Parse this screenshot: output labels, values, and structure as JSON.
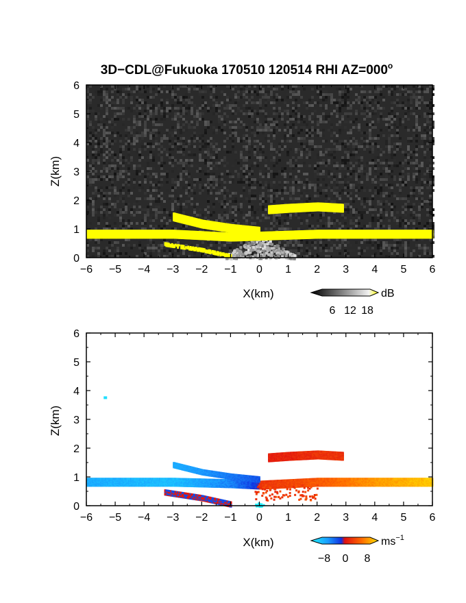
{
  "title": "3D−CDL@Fukuoka 170510 120514 RHI AZ=000",
  "title_sup": "o",
  "chart_data": [
    {
      "type": "heatmap",
      "panel": "reflectivity",
      "xlabel": "X(km)",
      "ylabel": "Z(km)",
      "xlim": [
        -6,
        6
      ],
      "ylim": [
        0,
        6
      ],
      "xticks": [
        "−6",
        "−5",
        "−4",
        "−3",
        "−2",
        "−1",
        "0",
        "1",
        "2",
        "3",
        "4",
        "5",
        "6"
      ],
      "yticks": [
        "0",
        "1",
        "2",
        "3",
        "4",
        "5",
        "6"
      ],
      "background": "noise",
      "colorbar": {
        "unit": "dB",
        "ticks": [
          "6",
          "12",
          "18"
        ],
        "range": [
          0,
          21
        ]
      },
      "colors": {
        "background": "#2a2a2a",
        "high": "#ffff00"
      },
      "features": [
        {
          "name": "main layer",
          "x": [
            -6.0,
            -3.0,
            -1.0,
            0.5,
            2.0,
            4.0,
            6.0
          ],
          "z": [
            0.85,
            0.85,
            0.75,
            0.8,
            0.85,
            0.85,
            0.85
          ]
        },
        {
          "name": "inclined band",
          "x": [
            -3.0,
            -2.0,
            -1.0,
            0.0
          ],
          "z": [
            1.45,
            1.2,
            1.05,
            0.95
          ]
        },
        {
          "name": "upper layer",
          "x": [
            0.3,
            1.0,
            2.0,
            2.9
          ],
          "z": [
            1.7,
            1.75,
            1.8,
            1.75
          ]
        },
        {
          "name": "lower band",
          "x": [
            -3.3,
            -2.0,
            -1.0
          ],
          "z": [
            0.5,
            0.3,
            0.08
          ]
        }
      ]
    },
    {
      "type": "heatmap",
      "panel": "radial velocity",
      "xlabel": "X(km)",
      "ylabel": "Z(km)",
      "xlim": [
        -6,
        6
      ],
      "ylim": [
        0,
        6
      ],
      "xticks": [
        "−6",
        "−5",
        "−4",
        "−3",
        "−2",
        "−1",
        "0",
        "1",
        "2",
        "3",
        "4",
        "5",
        "6"
      ],
      "yticks": [
        "0",
        "1",
        "2",
        "3",
        "4",
        "5",
        "6"
      ],
      "background": "white",
      "colorbar": {
        "unit": "ms",
        "unit_sup": "−1",
        "ticks": [
          "−8",
          "0",
          "8"
        ],
        "range": [
          -10,
          10
        ]
      },
      "colors": {
        "negative": "#1f4fd8",
        "near_zero": "#e02010",
        "positive": "#ffb000",
        "strong_negative": "#20e0f0"
      },
      "features": [
        {
          "name": "main layer west",
          "x": [
            -6.0,
            -3.0,
            -1.0,
            0.0
          ],
          "z": [
            0.85,
            0.85,
            0.8,
            0.75
          ],
          "v": [
            -6,
            -7,
            -4,
            -1
          ]
        },
        {
          "name": "main layer east",
          "x": [
            0.0,
            2.0,
            4.0,
            6.0
          ],
          "z": [
            0.75,
            0.85,
            0.85,
            0.85
          ],
          "v": [
            2,
            4,
            7,
            9
          ]
        },
        {
          "name": "upper layer",
          "x": [
            0.3,
            1.0,
            2.0,
            2.9
          ],
          "z": [
            1.7,
            1.75,
            1.8,
            1.75
          ],
          "v": [
            1,
            1,
            2,
            2
          ]
        },
        {
          "name": "isolated echo",
          "x": [
            -5.4
          ],
          "z": [
            3.8
          ],
          "v": [
            -9
          ]
        }
      ]
    }
  ]
}
